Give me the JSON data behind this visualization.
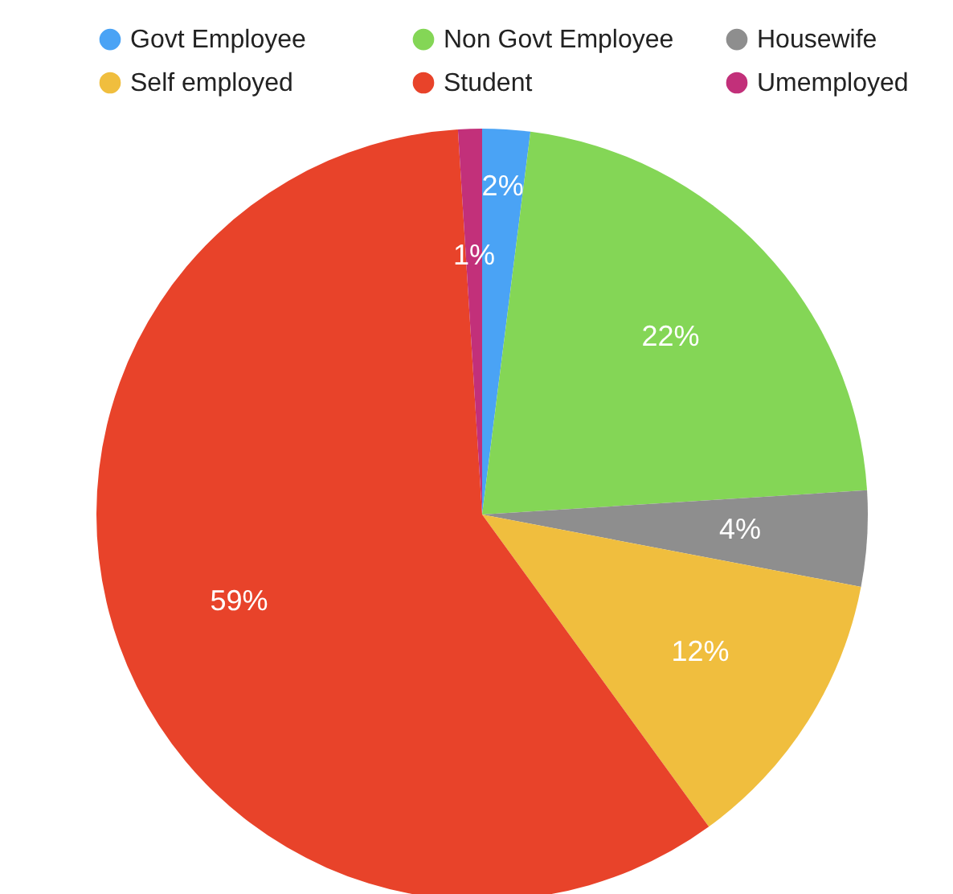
{
  "chart_data": {
    "type": "pie",
    "categories": [
      "Govt Employee",
      "Non Govt Employee",
      "Housewife",
      "Self employed",
      "Student",
      "Umemployed"
    ],
    "values": [
      2,
      22,
      4,
      12,
      59,
      1
    ],
    "value_labels": [
      "2%",
      "22%",
      "4%",
      "12%",
      "59%",
      "1%"
    ],
    "colors": [
      "#4aa3f5",
      "#84d656",
      "#8e8e8e",
      "#f0be3e",
      "#e8432a",
      "#c2307a"
    ],
    "legend": "top"
  }
}
